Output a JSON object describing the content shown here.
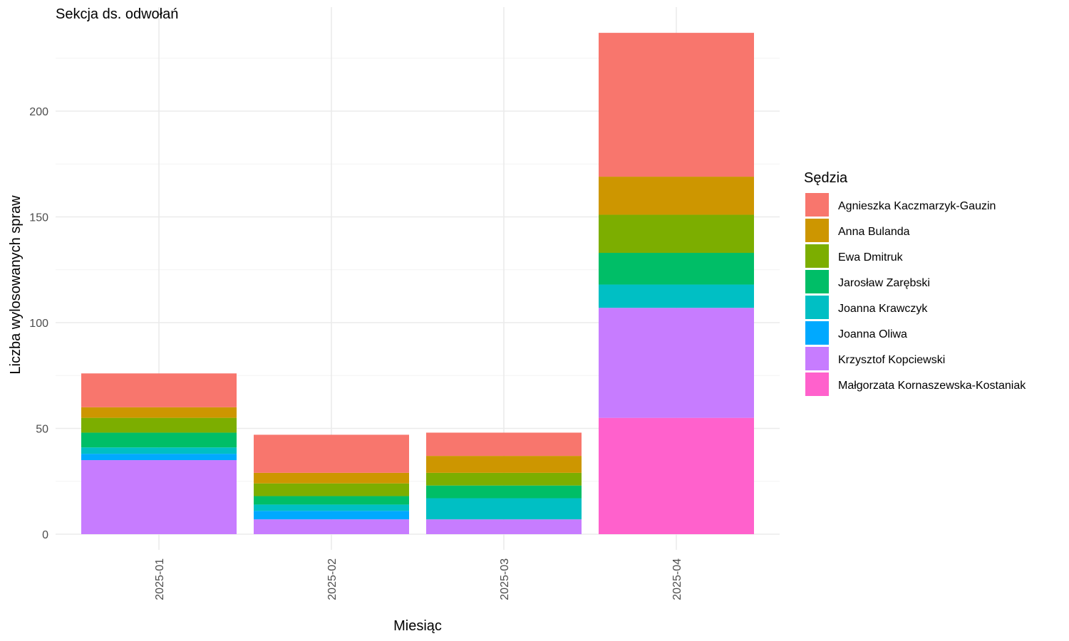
{
  "chart_data": {
    "type": "bar",
    "stacked": true,
    "title": "Sekcja ds. odwołań",
    "xlabel": "Miesiąc",
    "ylabel": "Liczba wylosowanych spraw",
    "ylim": [
      0,
      240
    ],
    "yticks": [
      0,
      50,
      100,
      150,
      200
    ],
    "grid": true,
    "legend": {
      "title": "Sędzia",
      "position": "right"
    },
    "categories": [
      "2025-01",
      "2025-02",
      "2025-03",
      "2025-04"
    ],
    "series": [
      {
        "name": "Agnieszka Kaczmarzyk-Gauzin",
        "color": "#F8766D",
        "values": [
          16,
          18,
          11,
          68
        ]
      },
      {
        "name": "Anna Bulanda",
        "color": "#CD9600",
        "values": [
          5,
          5,
          8,
          18
        ]
      },
      {
        "name": "Ewa Dmitruk",
        "color": "#7CAE00",
        "values": [
          7,
          6,
          6,
          18
        ]
      },
      {
        "name": "Jarosław Zarębski",
        "color": "#00BE67",
        "values": [
          7,
          4,
          6,
          15
        ]
      },
      {
        "name": "Joanna Krawczyk",
        "color": "#00BFC4",
        "values": [
          3,
          3,
          10,
          11
        ]
      },
      {
        "name": "Joanna Oliwa",
        "color": "#00A9FF",
        "values": [
          3,
          4,
          0,
          0
        ]
      },
      {
        "name": "Krzysztof Kopciewski",
        "color": "#C77CFF",
        "values": [
          35,
          7,
          7,
          52
        ]
      },
      {
        "name": "Małgorzata Kornaszewska-Kostaniak",
        "color": "#FF61CC",
        "values": [
          0,
          0,
          0,
          55
        ]
      }
    ]
  }
}
